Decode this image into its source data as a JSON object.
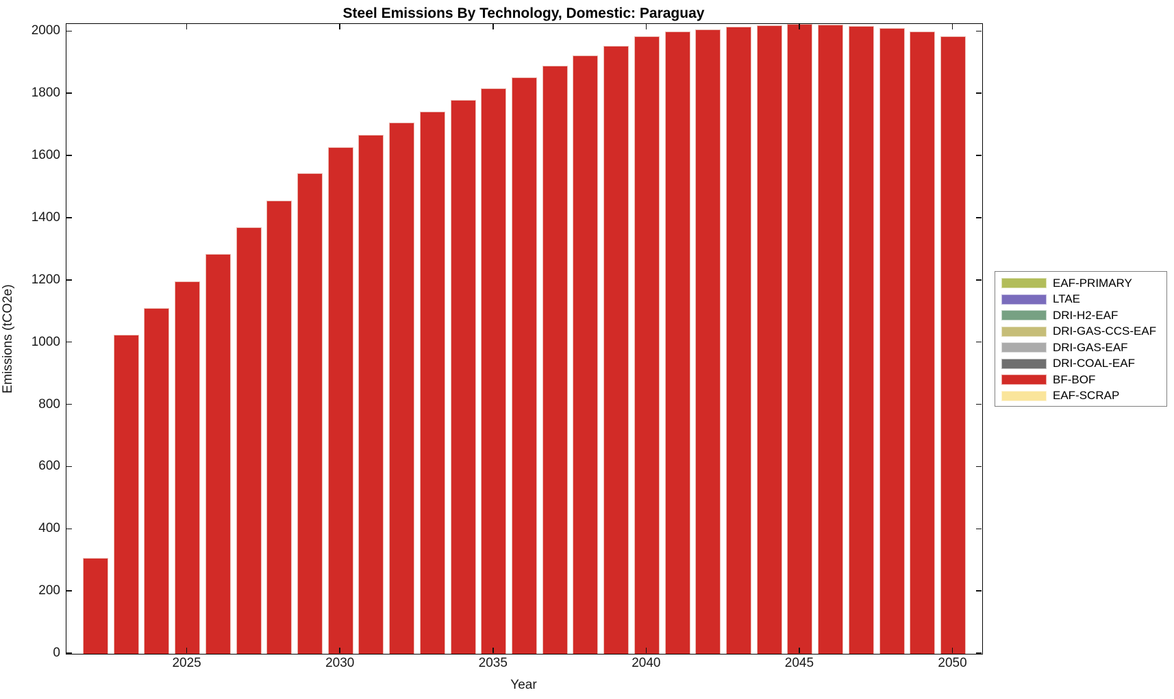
{
  "figure": {
    "title": "Steel Emissions By Technology, Domestic: Paraguay",
    "xlabel": "Year",
    "ylabel": "Emissions (tCO2e)"
  },
  "chart_data": {
    "type": "bar",
    "title": "Steel Emissions By Technology, Domestic: Paraguay",
    "xlabel": "Year",
    "ylabel": "Emissions (tCO2e)",
    "x": [
      2022,
      2023,
      2024,
      2025,
      2026,
      2027,
      2028,
      2029,
      2030,
      2031,
      2032,
      2033,
      2034,
      2035,
      2036,
      2037,
      2038,
      2039,
      2040,
      2041,
      2042,
      2043,
      2044,
      2045,
      2046,
      2047,
      2048,
      2049,
      2050
    ],
    "series": [
      {
        "name": "BF-BOF",
        "color": "#d22b27",
        "values": [
          309,
          1025,
          1111,
          1197,
          1285,
          1371,
          1457,
          1545,
          1629,
          1668,
          1708,
          1743,
          1781,
          1818,
          1854,
          1890,
          1923,
          1955,
          1986,
          2000,
          2008,
          2016,
          2021,
          2025,
          2023,
          2018,
          2011,
          2001,
          1986
        ]
      }
    ],
    "legend_position": "right-outside",
    "legend_entries": [
      {
        "label": "EAF-PRIMARY",
        "color": "#b2bd5a"
      },
      {
        "label": "LTAE",
        "color": "#7a6cbc"
      },
      {
        "label": "DRI-H2-EAF",
        "color": "#77a183"
      },
      {
        "label": "DRI-GAS-CCS-EAF",
        "color": "#c6bd78"
      },
      {
        "label": "DRI-GAS-EAF",
        "color": "#ababab"
      },
      {
        "label": "DRI-COAL-EAF",
        "color": "#6f6f6f"
      },
      {
        "label": "BF-BOF",
        "color": "#d22b27"
      },
      {
        "label": "EAF-SCRAP",
        "color": "#fae59b"
      }
    ],
    "xlim": [
      2021.05,
      2050.95
    ],
    "ylim": [
      0,
      2025
    ],
    "x_ticks": [
      2025,
      2030,
      2035,
      2040,
      2045,
      2050
    ],
    "y_ticks": [
      0,
      200,
      400,
      600,
      800,
      1000,
      1200,
      1400,
      1600,
      1800,
      2000
    ],
    "grid": false,
    "bar_width_fraction": 0.83,
    "bar_edge_color": "#ecbcb4",
    "axis_color": "#000000",
    "tick_label_color": "#1a1a1a"
  }
}
